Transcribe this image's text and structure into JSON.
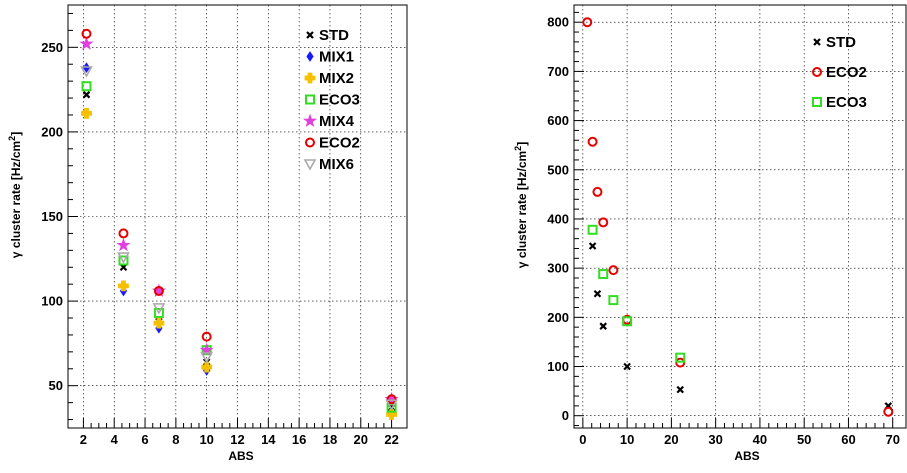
{
  "chart_data": [
    {
      "type": "scatter",
      "xlabel": "ABS",
      "ylabel": "γ cluster rate [Hz/cm²]",
      "ylabel_parts": {
        "greek": "γ",
        "main": " cluster rate [Hz/cm",
        "sup": "2",
        "end": "]"
      },
      "xlim": [
        1,
        23
      ],
      "ylim": [
        25,
        275
      ],
      "xticks": [
        2,
        4,
        6,
        8,
        10,
        12,
        14,
        16,
        18,
        20,
        22
      ],
      "yticks": [
        50,
        100,
        150,
        200,
        250
      ],
      "grid": true,
      "legend_position": "top-right",
      "series": [
        {
          "name": "STD",
          "marker": "x-cross",
          "color": "#000000",
          "x": [
            2.2,
            4.6,
            6.9,
            10,
            22
          ],
          "y": [
            222,
            120,
            88,
            64,
            37
          ]
        },
        {
          "name": "MIX1",
          "marker": "diamond",
          "color": "#1a1aff",
          "x": [
            2.2,
            4.6,
            6.9,
            10,
            22
          ],
          "y": [
            238,
            106,
            84,
            59,
            33
          ]
        },
        {
          "name": "MIX2",
          "marker": "filled-cross",
          "color": "#f5c000",
          "x": [
            2.2,
            4.6,
            6.9,
            10,
            22
          ],
          "y": [
            211,
            109,
            87,
            61,
            33
          ]
        },
        {
          "name": "ECO3",
          "marker": "open-square",
          "color": "#33dd22",
          "x": [
            2.2,
            4.6,
            6.9,
            10,
            22
          ],
          "y": [
            227,
            124,
            93,
            71,
            37
          ]
        },
        {
          "name": "MIX4",
          "marker": "star",
          "color": "#e040e0",
          "x": [
            2.2,
            4.6,
            6.9,
            10,
            22
          ],
          "y": [
            252,
            133,
            106,
            71,
            42
          ]
        },
        {
          "name": "ECO2",
          "marker": "open-circle",
          "color": "#e60000",
          "x": [
            2.2,
            4.6,
            6.9,
            10,
            22
          ],
          "y": [
            258,
            140,
            106,
            79,
            42
          ]
        },
        {
          "name": "MIX6",
          "marker": "open-triangle-down",
          "color": "#aaaaaa",
          "x": [
            2.2,
            4.6,
            6.9,
            10,
            22
          ],
          "y": [
            236,
            126,
            96,
            67,
            39
          ]
        }
      ]
    },
    {
      "type": "scatter",
      "xlabel": "ABS",
      "ylabel": "γ cluster rate [Hz/cm²]",
      "ylabel_parts": {
        "greek": "γ",
        "main": " cluster rate [Hz/cm",
        "sup": "2",
        "end": "]"
      },
      "xlim": [
        -2,
        73
      ],
      "ylim": [
        -25,
        835
      ],
      "xticks": [
        0,
        10,
        20,
        30,
        40,
        50,
        60,
        70
      ],
      "yticks": [
        0,
        100,
        200,
        300,
        400,
        500,
        600,
        700,
        800
      ],
      "grid": true,
      "legend_position": "top-right",
      "series": [
        {
          "name": "STD",
          "marker": "x-cross",
          "color": "#000000",
          "x": [
            2.2,
            3.3,
            4.6,
            10,
            22,
            69
          ],
          "y": [
            345,
            248,
            182,
            100,
            53,
            20
          ]
        },
        {
          "name": "ECO2",
          "marker": "open-circle",
          "color": "#e60000",
          "x": [
            1,
            2.2,
            3.3,
            4.6,
            6.9,
            10,
            22,
            69
          ],
          "y": [
            800,
            557,
            455,
            393,
            296,
            195,
            108,
            8
          ]
        },
        {
          "name": "ECO3",
          "marker": "open-square",
          "color": "#33dd22",
          "x": [
            2.2,
            4.6,
            6.9,
            10,
            22
          ],
          "y": [
            378,
            288,
            235,
            192,
            118
          ]
        }
      ]
    }
  ]
}
